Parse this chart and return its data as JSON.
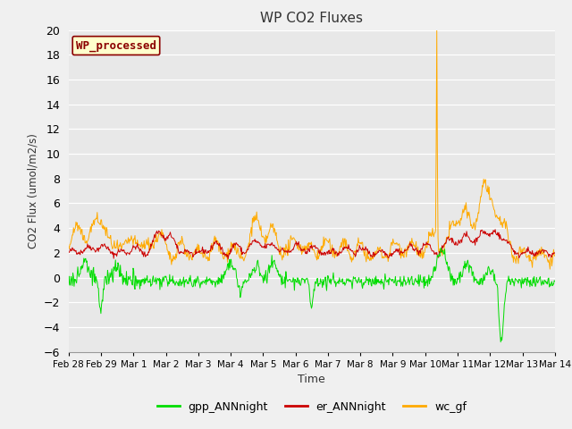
{
  "title": "WP CO2 Fluxes",
  "ylabel": "CO2 Flux (umol/m2/s)",
  "xlabel": "Time",
  "ylim": [
    -6,
    20
  ],
  "yticks": [
    -6,
    -4,
    -2,
    0,
    2,
    4,
    6,
    8,
    10,
    12,
    14,
    16,
    18,
    20
  ],
  "xtick_labels": [
    "Feb 28",
    "Feb 29",
    "Mar 1",
    "Mar 2",
    "Mar 3",
    "Mar 4",
    "Mar 5",
    "Mar 6",
    "Mar 7",
    "Mar 8",
    "Mar 9",
    "Mar 10",
    "Mar 11",
    "Mar 12",
    "Mar 13",
    "Mar 14"
  ],
  "annotation_text": "WP_processed",
  "annotation_facecolor": "#ffffcc",
  "annotation_edgecolor": "#8b0000",
  "annotation_textcolor": "#8b0000",
  "color_gpp": "#00dd00",
  "color_er": "#cc0000",
  "color_wc": "#ffaa00",
  "legend_labels": [
    "gpp_ANNnight",
    "er_ANNnight",
    "wc_gf"
  ],
  "axes_facecolor": "#e8e8e8",
  "fig_facecolor": "#f0f0f0",
  "grid_color": "#ffffff",
  "n_points": 800,
  "seed": 42,
  "figsize": [
    6.4,
    4.8
  ],
  "dpi": 100
}
